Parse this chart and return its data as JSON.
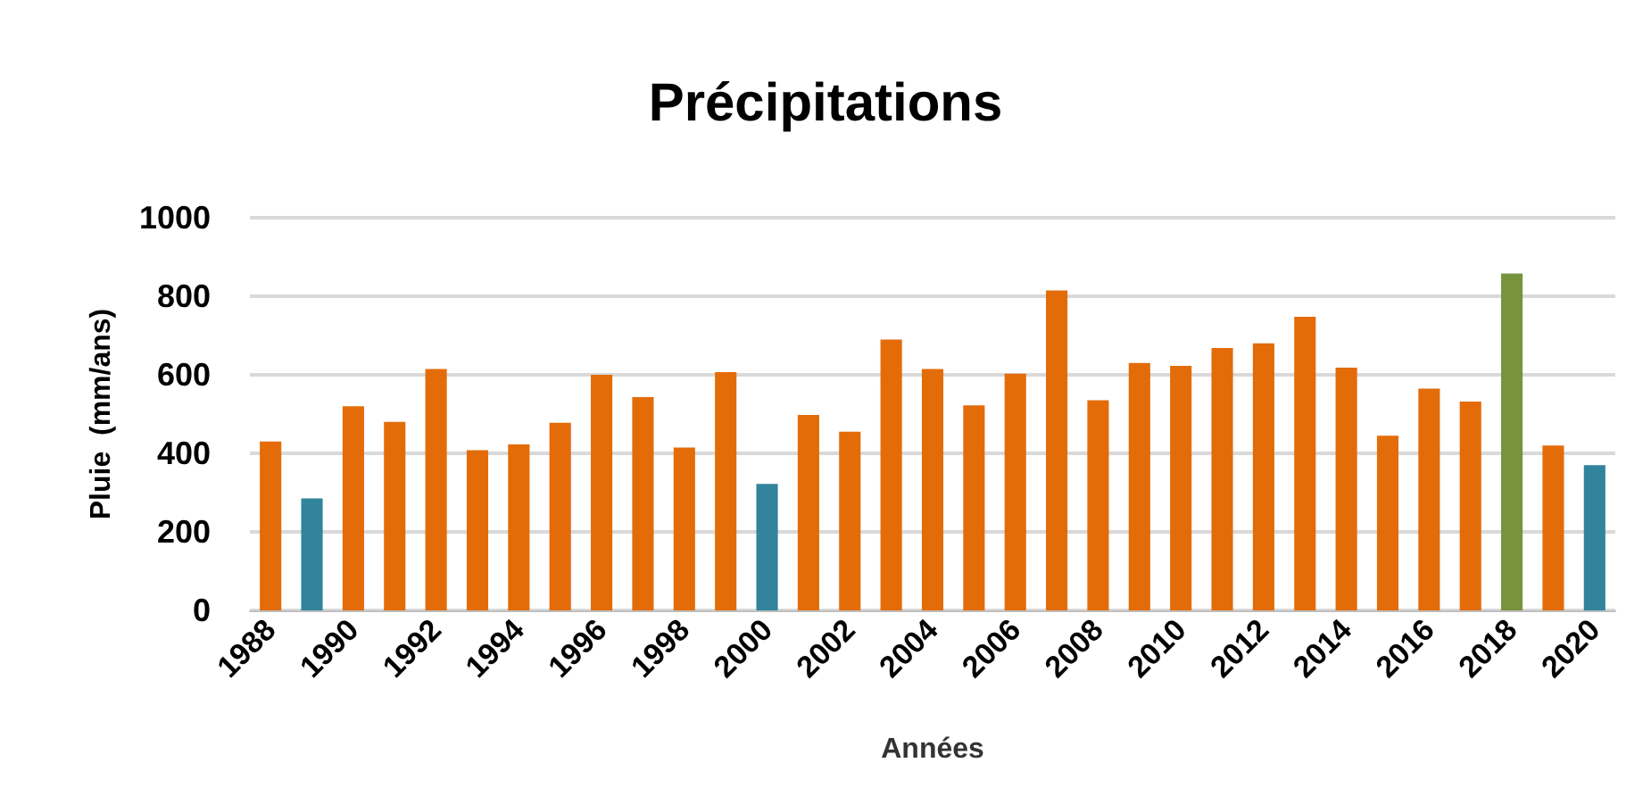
{
  "chart_data": {
    "type": "bar",
    "title": "Précipitations",
    "xlabel": "Années",
    "ylabel": "Pluie  (mm/ans)",
    "categories": [
      "1988",
      null,
      "1990",
      null,
      "1992",
      null,
      "1994",
      null,
      "1996",
      null,
      "1998",
      null,
      "2000",
      null,
      "2002",
      null,
      "2004",
      null,
      "2006",
      null,
      "2008",
      null,
      "2010",
      null,
      "2012",
      null,
      "2014",
      null,
      "2016",
      null,
      "2018",
      null,
      "2020"
    ],
    "values": [
      430,
      285,
      520,
      480,
      615,
      408,
      423,
      478,
      600,
      543,
      415,
      607,
      322,
      498,
      455,
      690,
      615,
      522,
      603,
      815,
      535,
      630,
      623,
      668,
      680,
      748,
      618,
      445,
      565,
      532,
      858,
      420,
      370
    ],
    "colors": [
      "#e36c09",
      "#31849b",
      "#e36c09",
      "#e36c09",
      "#e36c09",
      "#e36c09",
      "#e36c09",
      "#e36c09",
      "#e36c09",
      "#e36c09",
      "#e36c09",
      "#e36c09",
      "#31849b",
      "#e36c09",
      "#e36c09",
      "#e36c09",
      "#e36c09",
      "#e36c09",
      "#e36c09",
      "#e36c09",
      "#e36c09",
      "#e36c09",
      "#e36c09",
      "#e36c09",
      "#e36c09",
      "#e36c09",
      "#e36c09",
      "#e36c09",
      "#e36c09",
      "#e36c09",
      "#77933c",
      "#e36c09",
      "#31849b"
    ],
    "ylim": [
      0,
      1000
    ],
    "yticks": [
      0,
      200,
      400,
      600,
      800,
      1000
    ],
    "grid": "y"
  }
}
